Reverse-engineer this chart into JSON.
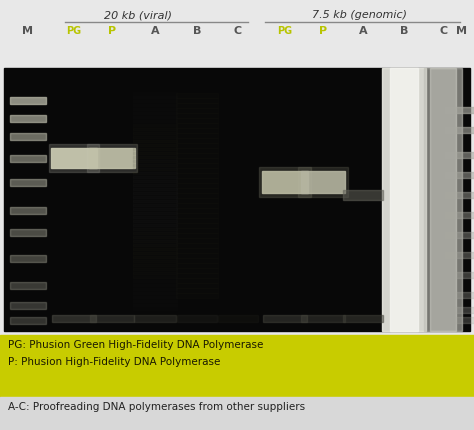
{
  "fig_width": 4.74,
  "fig_height": 4.3,
  "dpi": 100,
  "outer_bg": "#e8e8e8",
  "yellow_bg": "#c8cc00",
  "gray_bg": "#d8d8d8",
  "title1": "20 kb (viral)",
  "title2": "7.5 kb (genomic)",
  "pg_color": "#b8c400",
  "normal_color": "#555555",
  "legend_line1": "PG: Phusion Green High-Fidelity DNA Polymerase",
  "legend_line2": "P: Phusion High-Fidelity DNA Polymerase",
  "legend_line3": "A-C: Proofreading DNA polymerases from other suppliers"
}
